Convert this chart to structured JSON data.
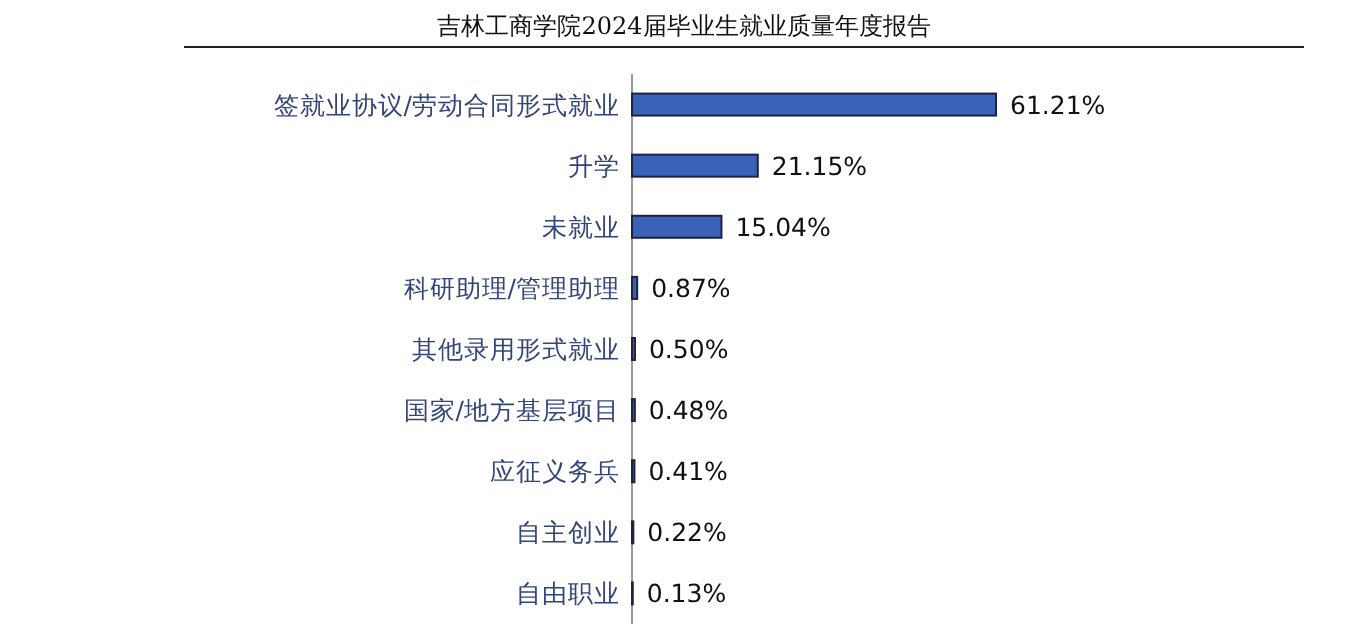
{
  "chart_data": {
    "type": "bar",
    "orientation": "horizontal",
    "title": "吉林工商学院2024届毕业生就业质量年度报告",
    "categories": [
      "签就业协议/劳动合同形式就业",
      "升学",
      "未就业",
      "科研助理/管理助理",
      "其他录用形式就业",
      "国家/地方基层项目",
      "应征义务兵",
      "自主创业",
      "自由职业"
    ],
    "values": [
      61.21,
      21.15,
      15.04,
      0.87,
      0.5,
      0.48,
      0.41,
      0.22,
      0.13
    ],
    "value_labels": [
      "61.21%",
      "21.15%",
      "15.04%",
      "0.87%",
      "0.50%",
      "0.48%",
      "0.41%",
      "0.22%",
      "0.13%"
    ],
    "color": "#3a62b8"
  }
}
